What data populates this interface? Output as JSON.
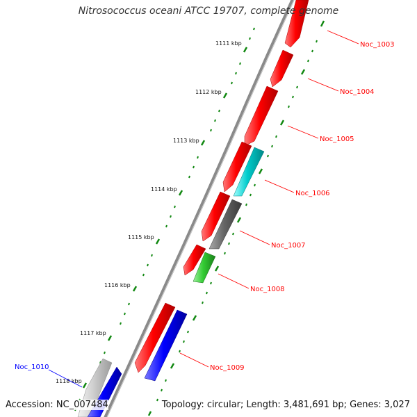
{
  "title": "Nitrosococcus oceani ATCC 19707, complete genome",
  "footer": {
    "accession": "Accession: NC_007484",
    "summary": "Topology: circular; Length: 3,481,691 bp; Genes: 3,027"
  },
  "colors": {
    "label_red": "#ff0000",
    "label_blue": "#0000ff",
    "tick_green": "#118811",
    "backbone": "#888888"
  },
  "kbp_ticks": [
    "1111 kbp",
    "1112 kbp",
    "1113 kbp",
    "1114 kbp",
    "1115 kbp",
    "1116 kbp",
    "1117 kbp",
    "1118 kbp"
  ],
  "gene_labels": [
    {
      "name": "Noc_1003",
      "color": "#ff0000"
    },
    {
      "name": "Noc_1004",
      "color": "#ff0000"
    },
    {
      "name": "Noc_1005",
      "color": "#ff0000"
    },
    {
      "name": "Noc_1006",
      "color": "#ff0000"
    },
    {
      "name": "Noc_1007",
      "color": "#ff0000"
    },
    {
      "name": "Noc_1008",
      "color": "#ff0000"
    },
    {
      "name": "Noc_1009",
      "color": "#ff0000"
    },
    {
      "name": "Noc_1010",
      "color": "#0000ff"
    }
  ],
  "features": [
    {
      "kind": "cds",
      "color": "red"
    },
    {
      "kind": "cds",
      "color": "red"
    },
    {
      "kind": "cds",
      "color": "red"
    },
    {
      "kind": "cds",
      "color": "red"
    },
    {
      "kind": "cds",
      "color": "red"
    },
    {
      "kind": "cds",
      "color": "cyan"
    },
    {
      "kind": "cds",
      "color": "red"
    },
    {
      "kind": "cds",
      "color": "gray"
    },
    {
      "kind": "cds",
      "color": "red"
    },
    {
      "kind": "cds",
      "color": "green"
    },
    {
      "kind": "cds",
      "color": "red"
    },
    {
      "kind": "cds",
      "color": "blue"
    },
    {
      "kind": "cds",
      "color": "lightgray"
    },
    {
      "kind": "cds",
      "color": "blue"
    }
  ]
}
